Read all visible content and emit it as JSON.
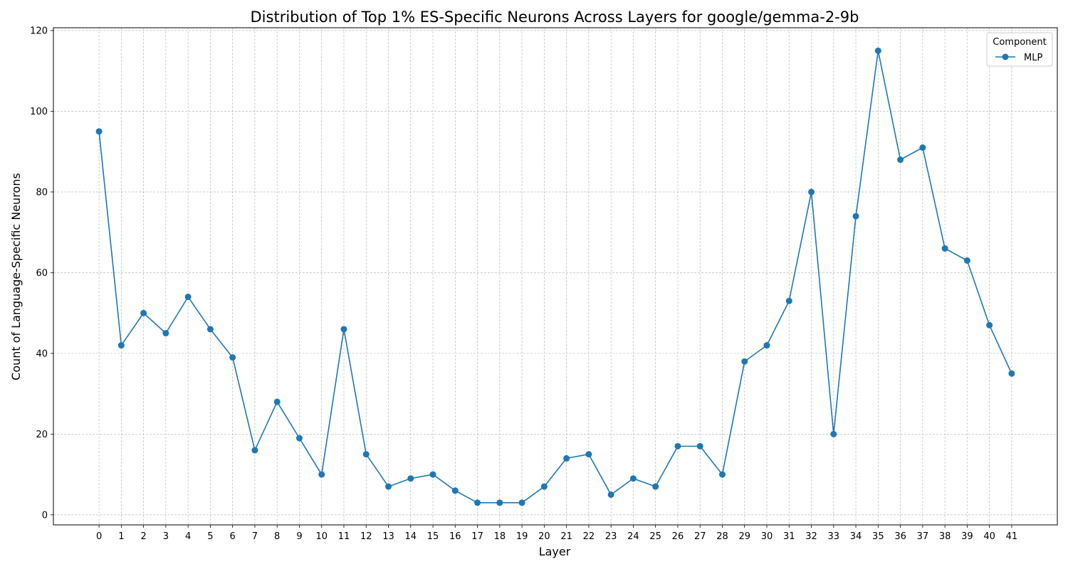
{
  "chart_data": {
    "type": "line",
    "title": "Distribution of Top 1% ES-Specific Neurons Across Layers for google/gemma-2-9b",
    "xlabel": "Layer",
    "ylabel": "Count of Language-Specific Neurons",
    "x": [
      0,
      1,
      2,
      3,
      4,
      5,
      6,
      7,
      8,
      9,
      10,
      11,
      12,
      13,
      14,
      15,
      16,
      17,
      18,
      19,
      20,
      21,
      22,
      23,
      24,
      25,
      26,
      27,
      28,
      29,
      30,
      31,
      32,
      33,
      34,
      35,
      36,
      37,
      38,
      39,
      40,
      41
    ],
    "xticks": [
      "0",
      "1",
      "2",
      "3",
      "4",
      "5",
      "6",
      "7",
      "8",
      "9",
      "10",
      "11",
      "12",
      "13",
      "14",
      "15",
      "16",
      "17",
      "18",
      "19",
      "20",
      "21",
      "22",
      "23",
      "24",
      "25",
      "26",
      "27",
      "28",
      "29",
      "30",
      "31",
      "32",
      "33",
      "34",
      "35",
      "36",
      "37",
      "38",
      "39",
      "40",
      "41"
    ],
    "xlim": [
      -2.05,
      43.05
    ],
    "yticks": [
      0,
      20,
      40,
      60,
      80,
      100,
      120
    ],
    "yticks_labels": [
      "0",
      "20",
      "40",
      "60",
      "80",
      "100",
      "120"
    ],
    "ylim": [
      -2.5,
      120.7
    ],
    "grid": true,
    "legend": {
      "title": "Component",
      "placement": "upper right"
    },
    "series": [
      {
        "name": "MLP",
        "color": "#1f77b4",
        "marker": "circle",
        "values": [
          95,
          42,
          50,
          45,
          54,
          46,
          39,
          16,
          28,
          19,
          10,
          46,
          15,
          7,
          9,
          10,
          6,
          3,
          3,
          3,
          7,
          14,
          15,
          5,
          9,
          7,
          17,
          17,
          10,
          38,
          42,
          53,
          80,
          20,
          74,
          115,
          88,
          91,
          66,
          63,
          47,
          35
        ]
      }
    ]
  }
}
